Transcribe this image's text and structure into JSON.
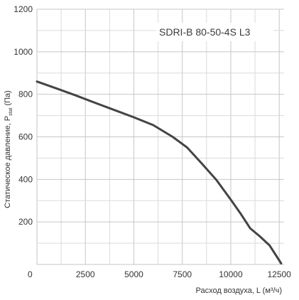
{
  "chart_data": {
    "type": "line",
    "title": "SDRI-B 80-50-4S L3",
    "xlabel": "Расход воздуха, L (м³/ч)",
    "ylabel": {
      "prefix": "Статическое давление, P",
      "subscript": "stat",
      "suffix": " (Па)"
    },
    "xlim": [
      0,
      12750
    ],
    "ylim": [
      0,
      1200
    ],
    "x_ticks": [
      {
        "value": 0,
        "label": "0"
      },
      {
        "value": 2500,
        "label": "2500"
      },
      {
        "value": 5000,
        "label": "5000"
      },
      {
        "value": 7500,
        "label": "7500"
      },
      {
        "value": 10000,
        "label": "10000"
      },
      {
        "value": 12500,
        "label": "12500"
      }
    ],
    "y_ticks": [
      {
        "value": 200,
        "label": "200"
      },
      {
        "value": 400,
        "label": "400"
      },
      {
        "value": 600,
        "label": "600"
      },
      {
        "value": 800,
        "label": "800"
      },
      {
        "value": 1000,
        "label": "1000"
      },
      {
        "value": 1200,
        "label": "1200"
      }
    ],
    "grid": true,
    "series": [
      {
        "color": "#444444",
        "x": [
          0,
          1000,
          2000,
          3000,
          4000,
          5000,
          6000,
          7000,
          7750,
          8500,
          9250,
          10000,
          10500,
          11000,
          11500,
          12000,
          12600
        ],
        "y": [
          860,
          828,
          795,
          760,
          726,
          692,
          655,
          600,
          550,
          475,
          398,
          305,
          240,
          170,
          132,
          90,
          5
        ]
      }
    ]
  }
}
